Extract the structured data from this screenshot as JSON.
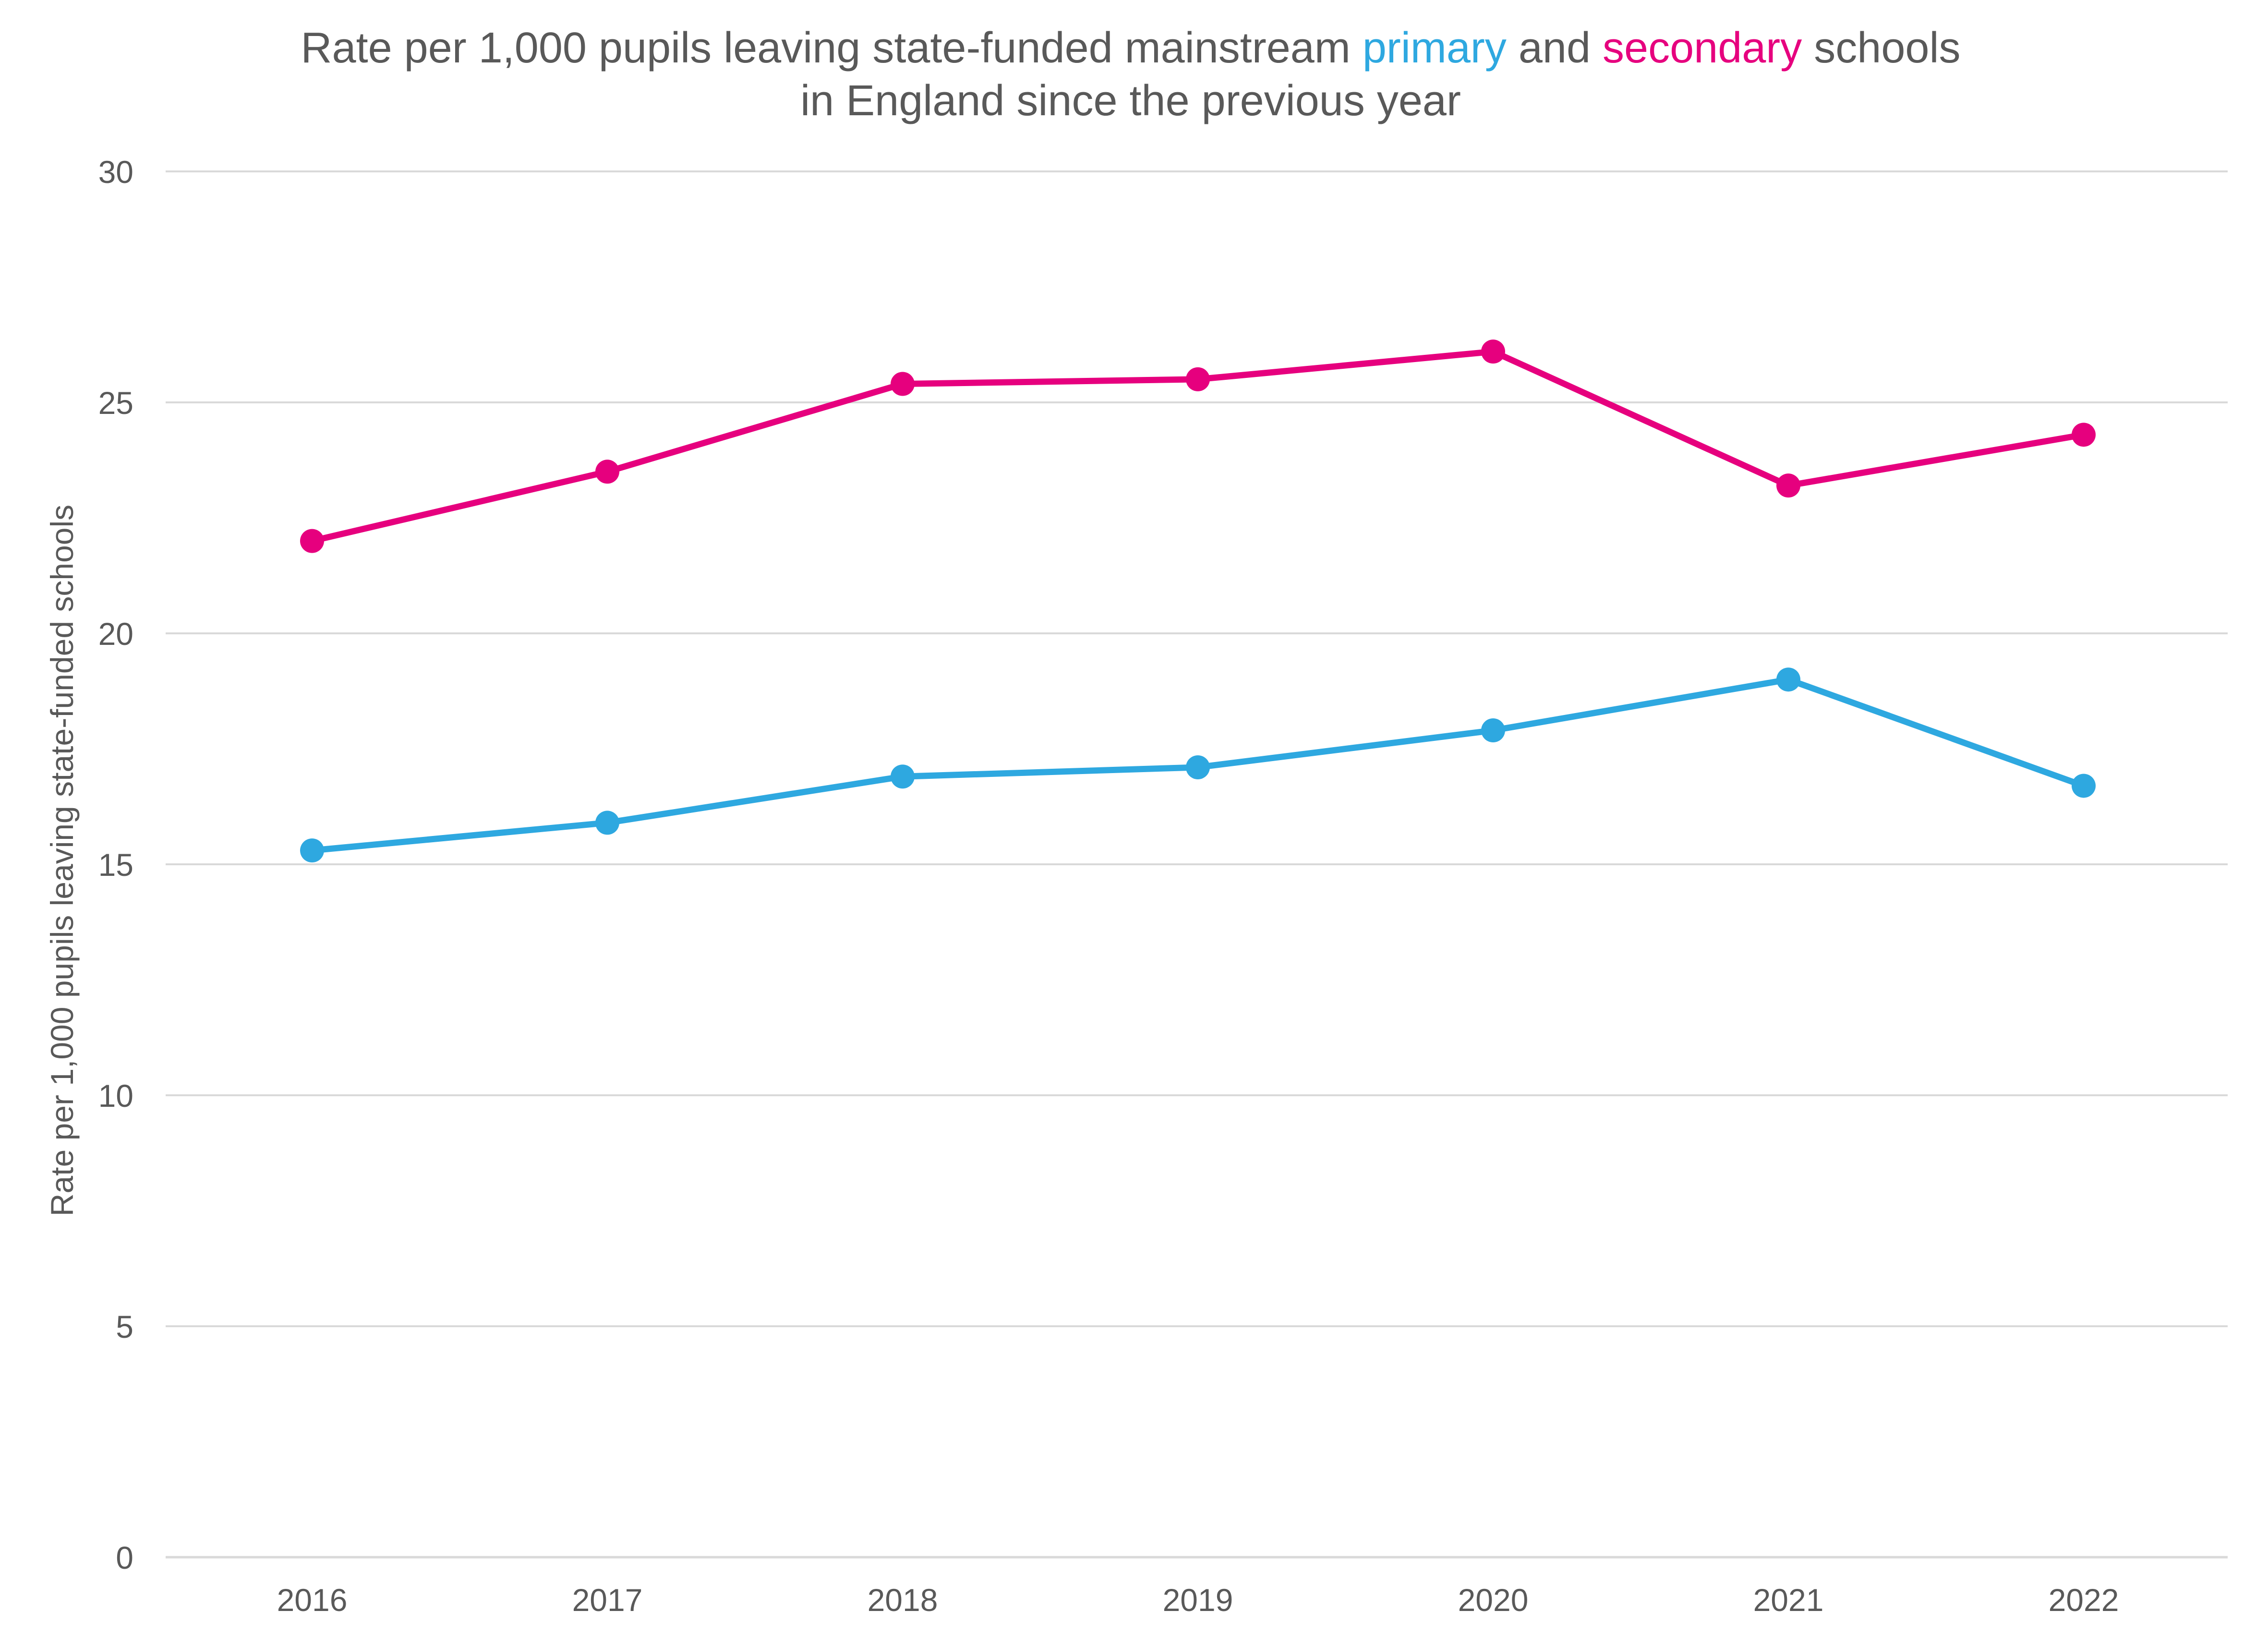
{
  "chart_data": {
    "type": "line",
    "title": {
      "line1": [
        {
          "text": "Rate per 1,000 pupils leaving state-funded mainstream ",
          "color": "#595959"
        },
        {
          "text": "primary",
          "color": "#2ea8e0"
        },
        {
          "text": " and ",
          "color": "#595959"
        },
        {
          "text": "secondary",
          "color": "#e6007e"
        },
        {
          "text": " schools",
          "color": "#595959"
        }
      ],
      "line2": "in England since the previous year"
    },
    "xlabel": "",
    "ylabel": "Rate per 1,000 pupils leaving state-funded schools",
    "categories": [
      "2016",
      "2017",
      "2018",
      "2019",
      "2020",
      "2021",
      "2022"
    ],
    "ylim": [
      0,
      30
    ],
    "yticks": [
      0,
      5,
      10,
      15,
      20,
      25,
      30
    ],
    "grid": true,
    "legend": "none",
    "series": [
      {
        "name": "secondary",
        "color": "#e6007e",
        "values": [
          22.0,
          23.5,
          25.4,
          25.5,
          26.1,
          23.2,
          24.3
        ]
      },
      {
        "name": "primary",
        "color": "#2ea8e0",
        "values": [
          15.3,
          15.9,
          16.9,
          17.1,
          17.9,
          19.0,
          16.7
        ]
      }
    ]
  }
}
